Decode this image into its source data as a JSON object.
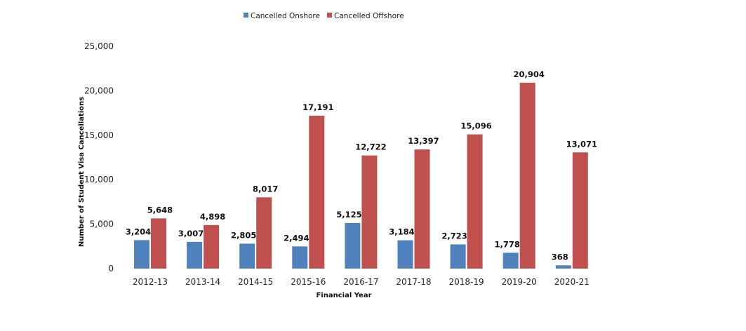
{
  "chart_data": {
    "type": "bar",
    "title": "",
    "xlabel": "Financial Year",
    "ylabel": "Number of Student Visa Cancellations",
    "ylim": [
      0,
      25000
    ],
    "yticks": [
      "0",
      "5,000",
      "10,000",
      "15,000",
      "20,000",
      "25,000"
    ],
    "ytick_values": [
      0,
      5000,
      10000,
      15000,
      20000,
      25000
    ],
    "grid": false,
    "legend_position": "top",
    "categories": [
      "2012-13",
      "2013-14",
      "2014-15",
      "2015-16",
      "2016-17",
      "2017-18",
      "2018-19",
      "2019-20",
      "2020-21"
    ],
    "series": [
      {
        "name": "Cancelled Onshore",
        "color": "#4F81BD",
        "values": [
          3204,
          3007,
          2805,
          2494,
          5125,
          3184,
          2723,
          1778,
          368
        ],
        "labels": [
          "3,204",
          "3,007",
          "2,805",
          "2,494",
          "5,125",
          "3,184",
          "2,723",
          "1,778",
          "368"
        ]
      },
      {
        "name": "Cancelled Offshore",
        "color": "#C0504D",
        "values": [
          5648,
          4898,
          8017,
          17191,
          12722,
          13397,
          15096,
          20904,
          13071
        ],
        "labels": [
          "5,648",
          "4,898",
          "8,017",
          "17,191",
          "12,722",
          "13,397",
          "15,096",
          "20,904",
          "13,071"
        ]
      }
    ]
  }
}
